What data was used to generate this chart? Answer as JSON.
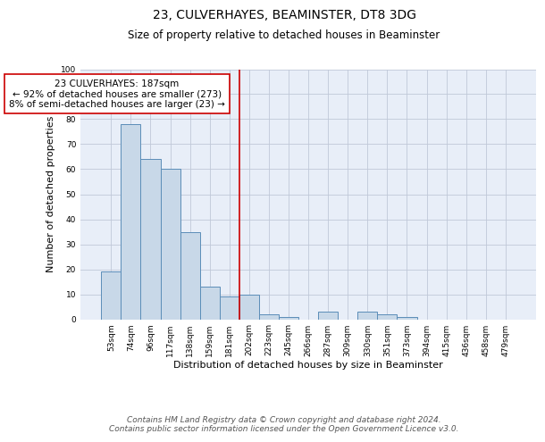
{
  "title": "23, CULVERHAYES, BEAMINSTER, DT8 3DG",
  "subtitle": "Size of property relative to detached houses in Beaminster",
  "xlabel": "Distribution of detached houses by size in Beaminster",
  "ylabel": "Number of detached properties",
  "bar_labels": [
    "53sqm",
    "74sqm",
    "96sqm",
    "117sqm",
    "138sqm",
    "159sqm",
    "181sqm",
    "202sqm",
    "223sqm",
    "245sqm",
    "266sqm",
    "287sqm",
    "309sqm",
    "330sqm",
    "351sqm",
    "373sqm",
    "394sqm",
    "415sqm",
    "436sqm",
    "458sqm",
    "479sqm"
  ],
  "bar_values": [
    19,
    78,
    64,
    60,
    35,
    13,
    9,
    10,
    2,
    1,
    0,
    3,
    0,
    3,
    2,
    1,
    0,
    0,
    0,
    0,
    0
  ],
  "bar_color": "#c8d8e8",
  "bar_edge_color": "#5b8db8",
  "vline_x": 6.5,
  "vline_color": "#cc0000",
  "annotation_text": "23 CULVERHAYES: 187sqm\n← 92% of detached houses are smaller (273)\n8% of semi-detached houses are larger (23) →",
  "annotation_box_color": "#ffffff",
  "annotation_box_edge": "#cc0000",
  "ylim": [
    0,
    100
  ],
  "yticks": [
    0,
    10,
    20,
    30,
    40,
    50,
    60,
    70,
    80,
    90,
    100
  ],
  "grid_color": "#c0c8d8",
  "background_color": "#e8eef8",
  "footer": "Contains HM Land Registry data © Crown copyright and database right 2024.\nContains public sector information licensed under the Open Government Licence v3.0.",
  "title_fontsize": 10,
  "subtitle_fontsize": 8.5,
  "tick_fontsize": 6.5,
  "ylabel_fontsize": 8,
  "xlabel_fontsize": 8,
  "footer_fontsize": 6.5,
  "annotation_fontsize": 7.5
}
